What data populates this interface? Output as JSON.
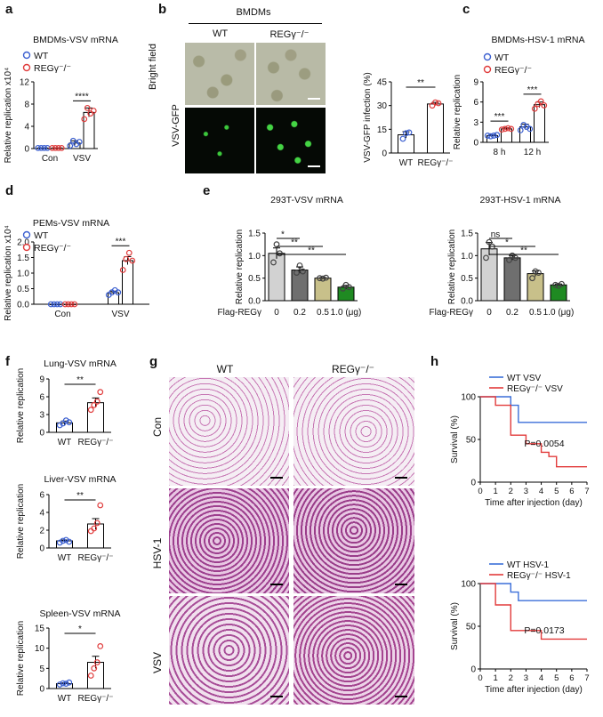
{
  "panels": {
    "a": {
      "label": "a",
      "title": "BMDMs-VSV mRNA",
      "ylabel": "Relative replication x10⁴",
      "legend": [
        "WT",
        "REGγ⁻/⁻"
      ]
    },
    "b": {
      "label": "b",
      "header": "BMDMs",
      "col_wt": "WT",
      "col_reg": "REGγ⁻/⁻",
      "row1": "Bright field",
      "row2": "VSV-GFP",
      "sig": "**"
    },
    "c": {
      "label": "c",
      "title": "BMDMs-HSV-1 mRNA",
      "ylabel": "Relative replication",
      "legend": [
        "WT",
        "REGγ⁻/⁻"
      ]
    },
    "d": {
      "label": "d",
      "title": "PEMs-VSV mRNA",
      "ylabel": "Relative replication x10⁴",
      "legend": [
        "WT",
        "REGγ⁻/⁻"
      ]
    },
    "e": {
      "label": "e",
      "title_left": "293T-VSV mRNA",
      "title_right": "293T-HSV-1 mRNA",
      "ylabel": "Relative replication",
      "flag": "Flag-REGγ"
    },
    "f": {
      "label": "f",
      "ylabel": "Relative replication"
    },
    "g": {
      "label": "g",
      "col_wt": "WT",
      "col_reg": "REGγ⁻/⁻",
      "rows": [
        "Con",
        "HSV-1",
        "VSV"
      ]
    },
    "h": {
      "label": "h",
      "ylabel": "Survival (%)",
      "xlabel": "Time after injection (day)"
    }
  },
  "chart_data": [
    {
      "id": "a",
      "type": "bar",
      "title": "BMDMs-VSV mRNA",
      "ylabel": "Relative replication x10⁴",
      "categories": [
        "Con",
        "VSV"
      ],
      "ylim": [
        0,
        12
      ],
      "yticks": [
        0,
        4,
        8,
        12
      ],
      "series": [
        {
          "name": "WT",
          "values": [
            0.1,
            1.0
          ],
          "errors": [
            0,
            0.4
          ],
          "points": [
            [
              0.1,
              0.1,
              0.1,
              0.1
            ],
            [
              0.5,
              1.4,
              0.8,
              1.2
            ]
          ]
        },
        {
          "name": "REGγ⁻/⁻",
          "values": [
            0.1,
            6.5
          ],
          "errors": [
            0,
            0.8
          ],
          "points": [
            [
              0.1,
              0.1,
              0.1,
              0.1
            ],
            [
              5.3,
              7.3,
              6.3,
              6.8
            ]
          ]
        }
      ],
      "sig": [
        {
          "text": "****",
          "cat": 1
        }
      ]
    },
    {
      "id": "b",
      "type": "bar",
      "ylabel": "VSV-GFP infection (%)",
      "categories": [
        "WT",
        "REGγ⁻/⁻"
      ],
      "ylim": [
        0,
        45
      ],
      "yticks": [
        0,
        15,
        30,
        45
      ],
      "values": [
        11.5,
        31
      ],
      "errors": [
        2,
        1
      ],
      "points": [
        [
          9,
          12.5,
          13
        ],
        [
          30,
          32,
          31.5
        ]
      ]
    },
    {
      "id": "c",
      "type": "bar",
      "title": "BMDMs-HSV-1 mRNA",
      "ylabel": "Relative replication",
      "categories": [
        "8 h",
        "12 h"
      ],
      "ylim": [
        0,
        9
      ],
      "yticks": [
        0,
        3,
        6,
        9
      ],
      "series": [
        {
          "name": "WT",
          "values": [
            1.0,
            2.3
          ],
          "errors": [
            0.1,
            0.4
          ],
          "points": [
            [
              1.0,
              0.9,
              1.0,
              1.1
            ],
            [
              1.8,
              2.6,
              2.3,
              2.0
            ]
          ]
        },
        {
          "name": "REGγ⁻/⁻",
          "values": [
            2.0,
            5.6
          ],
          "errors": [
            0.15,
            0.4
          ],
          "points": [
            [
              1.9,
              2.0,
              2.1,
              2.0
            ],
            [
              5.0,
              5.7,
              6.1,
              5.5
            ]
          ]
        }
      ],
      "sig": [
        {
          "text": "***",
          "cat": 0
        },
        {
          "text": "***",
          "cat": 1
        }
      ]
    },
    {
      "id": "d",
      "type": "bar",
      "title": "PEMs-VSV mRNA",
      "ylabel": "Relative replication x10⁴",
      "categories": [
        "Con",
        "VSV"
      ],
      "ylim": [
        0,
        2.0
      ],
      "yticks": [
        0.0,
        0.5,
        1.0,
        1.5,
        2.0
      ],
      "series": [
        {
          "name": "WT",
          "values": [
            0.0,
            0.37
          ],
          "errors": [
            0,
            0.05
          ],
          "points": [
            [
              0,
              0,
              0,
              0
            ],
            [
              0.3,
              0.38,
              0.45,
              0.38
            ]
          ]
        },
        {
          "name": "REGγ⁻/⁻",
          "values": [
            0.0,
            1.4
          ],
          "errors": [
            0,
            0.13
          ],
          "points": [
            [
              0,
              0,
              0,
              0
            ],
            [
              1.1,
              1.45,
              1.65,
              1.4
            ]
          ]
        }
      ],
      "sig": [
        {
          "text": "***",
          "cat": 1
        }
      ]
    },
    {
      "id": "e1",
      "type": "bar",
      "title": "293T-VSV mRNA",
      "ylabel": "Relative replication",
      "categories": [
        "0",
        "0.2",
        "0.5",
        "1.0 (μg)"
      ],
      "ylim": [
        0,
        1.5
      ],
      "yticks": [
        0.0,
        0.5,
        1.0,
        1.5
      ],
      "values": [
        1.05,
        0.68,
        0.5,
        0.3
      ],
      "errors": [
        0.12,
        0.07,
        0.01,
        0.04
      ],
      "points": [
        [
          0.85,
          1.25,
          1.05
        ],
        [
          0.62,
          0.78,
          0.65
        ],
        [
          0.5,
          0.49,
          0.51
        ],
        [
          0.27,
          0.35,
          0.3
        ]
      ],
      "colors": [
        "#d2d2d2",
        "#6f6f6f",
        "#c8c08a",
        "#1f8a22"
      ],
      "sig": [
        {
          "text": "*",
          "from": 0,
          "to": 1
        },
        {
          "text": "**",
          "from": 0,
          "to": 2
        },
        {
          "text": "**",
          "from": 0,
          "to": 3
        }
      ]
    },
    {
      "id": "e2",
      "type": "bar",
      "title": "293T-HSV-1 mRNA",
      "ylabel": "Relative replication",
      "categories": [
        "0",
        "0.2",
        "0.5",
        "1.0 (μg)"
      ],
      "ylim": [
        0,
        1.5
      ],
      "yticks": [
        0.0,
        0.5,
        1.0,
        1.5
      ],
      "values": [
        1.15,
        0.95,
        0.6,
        0.35
      ],
      "errors": [
        0.14,
        0.05,
        0.06,
        0.02
      ],
      "points": [
        [
          0.95,
          1.3,
          1.2
        ],
        [
          0.9,
          1.0,
          0.95
        ],
        [
          0.5,
          0.65,
          0.62
        ],
        [
          0.35,
          0.33,
          0.37
        ]
      ],
      "colors": [
        "#d2d2d2",
        "#6f6f6f",
        "#c8c08a",
        "#1f8a22"
      ],
      "sig": [
        {
          "text": "ns",
          "from": 0,
          "to": 1
        },
        {
          "text": "*",
          "from": 0,
          "to": 2
        },
        {
          "text": "**",
          "from": 0,
          "to": 3
        }
      ]
    },
    {
      "id": "f1",
      "type": "bar",
      "title": "Lung-VSV mRNA",
      "ylabel": "Relative replication",
      "categories": [
        "WT",
        "REGγ⁻/⁻"
      ],
      "ylim": [
        0,
        9
      ],
      "yticks": [
        0,
        3,
        6,
        9
      ],
      "values": [
        1.6,
        5.0
      ],
      "errors": [
        0.3,
        0.8
      ],
      "points": [
        [
          1.2,
          1.5,
          2.0,
          1.7
        ],
        [
          3.8,
          4.6,
          5.2,
          6.8
        ]
      ],
      "sig": "**"
    },
    {
      "id": "f2",
      "type": "bar",
      "title": "Liver-VSV mRNA",
      "ylabel": "Relative replication",
      "categories": [
        "WT",
        "REGγ⁻/⁻"
      ],
      "ylim": [
        0,
        6
      ],
      "yticks": [
        0,
        2,
        4,
        6
      ],
      "values": [
        0.8,
        2.7
      ],
      "errors": [
        0.1,
        0.6
      ],
      "points": [
        [
          0.6,
          0.8,
          0.9,
          0.7
        ],
        [
          1.9,
          2.2,
          2.8,
          4.8
        ]
      ],
      "sig": "**"
    },
    {
      "id": "f3",
      "type": "bar",
      "title": "Spleen-VSV mRNA",
      "ylabel": "Relative replication",
      "categories": [
        "WT",
        "REGγ⁻/⁻"
      ],
      "ylim": [
        0,
        15
      ],
      "yticks": [
        0,
        5,
        10,
        15
      ],
      "values": [
        1.2,
        6.5
      ],
      "errors": [
        0.2,
        1.5
      ],
      "points": [
        [
          1.0,
          1.3,
          1.2,
          1.5
        ],
        [
          3.2,
          5.0,
          6.5,
          10.5
        ]
      ],
      "sig": "*"
    },
    {
      "id": "h1",
      "type": "line",
      "ylabel": "Survival (%)",
      "xlabel": "Time after injection (day)",
      "x": [
        0,
        1,
        2,
        3,
        4,
        5,
        6,
        7
      ],
      "xlim": [
        0,
        7
      ],
      "ylim": [
        0,
        100
      ],
      "yticks": [
        0,
        50,
        100
      ],
      "series": [
        {
          "name": "WT VSV",
          "color": "#3b6fd9",
          "steps": [
            [
              0,
              100
            ],
            [
              1,
              100
            ],
            [
              2,
              90
            ],
            [
              2.5,
              70
            ],
            [
              7,
              70
            ]
          ]
        },
        {
          "name": "REGγ⁻/⁻ VSV",
          "color": "#e23b3b",
          "steps": [
            [
              0,
              100
            ],
            [
              1,
              90
            ],
            [
              2,
              55
            ],
            [
              3,
              45
            ],
            [
              4,
              35
            ],
            [
              4.5,
              30
            ],
            [
              5,
              18
            ],
            [
              7,
              18
            ]
          ]
        }
      ],
      "annotation": "P=0.0054"
    },
    {
      "id": "h2",
      "type": "line",
      "ylabel": "Survival (%)",
      "xlabel": "Time after injection (day)",
      "x": [
        0,
        1,
        2,
        3,
        4,
        5,
        6,
        7
      ],
      "xlim": [
        0,
        7
      ],
      "ylim": [
        0,
        100
      ],
      "yticks": [
        0,
        50,
        100
      ],
      "series": [
        {
          "name": "WT HSV-1",
          "color": "#3b6fd9",
          "steps": [
            [
              0,
              100
            ],
            [
              1,
              100
            ],
            [
              2,
              90
            ],
            [
              2.5,
              80
            ],
            [
              7,
              80
            ]
          ]
        },
        {
          "name": "REGγ⁻/⁻ HSV-1",
          "color": "#e23b3b",
          "steps": [
            [
              0,
              100
            ],
            [
              1,
              75
            ],
            [
              2,
              45
            ],
            [
              4,
              35
            ],
            [
              7,
              35
            ]
          ]
        }
      ],
      "annotation": "P=0.0173"
    }
  ],
  "colors": {
    "wt": "#3b5fd0",
    "reg": "#e03c3c",
    "bar_wt": "#ffffff",
    "bar_reg": "#ffffff"
  }
}
